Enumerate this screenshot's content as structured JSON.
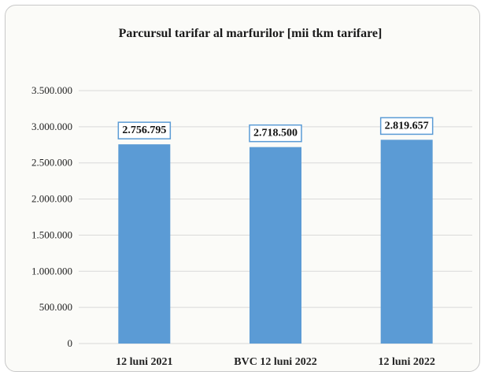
{
  "chart_data": {
    "type": "bar",
    "title": "Parcursul tarifar al marfurilor [mii tkm tarifare]",
    "categories": [
      "12 luni 2021",
      "BVC 12 luni 2022",
      "12 luni 2022"
    ],
    "values": [
      2756795,
      2718500,
      2819657
    ],
    "data_labels": [
      "2.756.795",
      "2.718.500",
      "2.819.657"
    ],
    "ylim": [
      0,
      3500000
    ],
    "yticks": [
      0,
      500000,
      1000000,
      1500000,
      2000000,
      2500000,
      3000000,
      3500000
    ],
    "ytick_labels": [
      "0",
      "500.000",
      "1.000.000",
      "1.500.000",
      "2.000.000",
      "2.500.000",
      "3.000.000",
      "3.500.000"
    ],
    "grid": true,
    "bar_color": "#5b9bd5",
    "label_border_color": "#5b9bd5"
  }
}
